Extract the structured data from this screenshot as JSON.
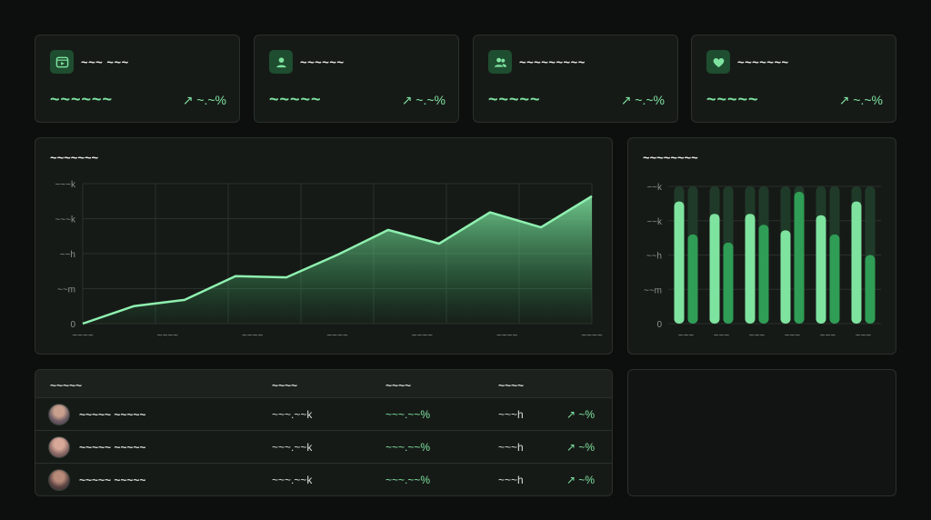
{
  "colors": {
    "accent": "#7fe3a0",
    "accent_dark": "#2f9d55",
    "icon_bg": "#1f4d30",
    "card_bg": "#161a17",
    "page_bg": "#0c0f0d"
  },
  "stats": [
    {
      "icon": "video-icon",
      "title": "~~~ ~~~",
      "value": "~~~~~~",
      "change": "↗ ~.~%"
    },
    {
      "icon": "user-icon",
      "title": "~~~~~~",
      "value": "~~~~~",
      "change": "↗ ~.~%"
    },
    {
      "icon": "users-icon",
      "title": "~~~~~~~~~",
      "value": "~~~~~",
      "change": "↗ ~.~%"
    },
    {
      "icon": "heart-icon",
      "title": "~~~~~~~",
      "value": "~~~~~",
      "change": "↗ ~.~%"
    }
  ],
  "line_chart": {
    "title": "~~~~~~~",
    "chart_data": {
      "type": "area",
      "x_labels": [
        "~~~~",
        "~~~~",
        "~~~~",
        "~~~~",
        "~~~~",
        "~~~~",
        "~~~~"
      ],
      "y_labels": [
        "0",
        "~~m",
        "~~h",
        "~~~k",
        "~~~k"
      ],
      "values": [
        0,
        14,
        19,
        38,
        37,
        55,
        75,
        64,
        89,
        77,
        102
      ],
      "ylim": [
        0,
        112
      ],
      "grid": true
    }
  },
  "bar_chart": {
    "title": "~~~~~~~~",
    "chart_data": {
      "type": "bar",
      "x_labels": [
        "~~~",
        "~~~",
        "~~~",
        "~~~",
        "~~~",
        "~~~"
      ],
      "y_labels": [
        "0",
        "~~m",
        "~~h",
        "~~k",
        "~~k"
      ],
      "series": [
        {
          "values": [
            0.89,
            0.8,
            0.8,
            0.68,
            0.79,
            0.89
          ]
        },
        {
          "values": [
            0.65,
            0.59,
            0.72,
            0.96,
            0.65,
            0.5
          ]
        }
      ],
      "ylim": [
        0,
        1
      ],
      "max_track": true
    }
  },
  "table": {
    "headers": [
      "~~~~~",
      "~~~~",
      "~~~~",
      "~~~~"
    ],
    "rows": [
      {
        "name": "~~~~~ ~~~~~",
        "col2": "~~~.~~k",
        "col3": "~~~.~~%",
        "col4": "~~~h",
        "trend": "↗ ~%"
      },
      {
        "name": "~~~~~ ~~~~~",
        "col2": "~~~.~~k",
        "col3": "~~~.~~%",
        "col4": "~~~h",
        "trend": "↗ ~%"
      },
      {
        "name": "~~~~~ ~~~~~",
        "col2": "~~~.~~k",
        "col3": "~~~.~~%",
        "col4": "~~~h",
        "trend": "↗ ~%"
      }
    ]
  }
}
